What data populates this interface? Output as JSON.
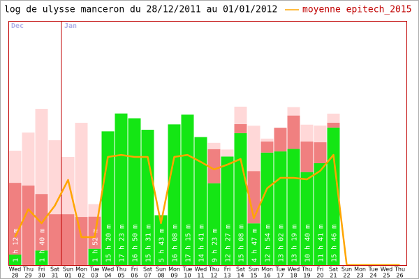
{
  "chart_data": {
    "type": "bar",
    "stacked": true,
    "title": "log de ulysse manceron du 28/12/2011 au 01/01/2012",
    "categories": [
      "28",
      "29",
      "30",
      "31",
      "01",
      "02",
      "03",
      "04",
      "05",
      "06",
      "07",
      "08",
      "09",
      "10",
      "11",
      "12",
      "13",
      "14",
      "15",
      "16",
      "17",
      "18",
      "19",
      "20",
      "21",
      "22",
      "23",
      "24",
      "25",
      "26"
    ],
    "weekdays": [
      "Wed",
      "Thu",
      "Fri",
      "Sat",
      "Sun",
      "Mon",
      "Tue",
      "Wed",
      "Thu",
      "Fri",
      "Sat",
      "Sun",
      "Mon",
      "Tue",
      "Wed",
      "Thu",
      "Fri",
      "Sat",
      "Sun",
      "Mon",
      "Tue",
      "Wed",
      "Thu",
      "Fri",
      "Sat",
      "Sun",
      "Mon",
      "Tue",
      "Wed",
      "Thu"
    ],
    "months": [
      "Dec",
      null,
      null,
      null,
      "Jan",
      null,
      null,
      null,
      null,
      null,
      null,
      null,
      null,
      null,
      null,
      null,
      null,
      null,
      null,
      null,
      null,
      null,
      null,
      null,
      null,
      null,
      null,
      null,
      null,
      null
    ],
    "ylim": [
      0,
      1680
    ],
    "series": [
      {
        "color": "#14e614",
        "values": [
          72,
          0,
          100,
          0,
          0,
          0,
          112,
          920,
          1043,
          1010,
          931,
          343,
          968,
          1035,
          881,
          563,
          747,
          908,
          287,
          774,
          782,
          799,
          640,
          701,
          946,
          0,
          0,
          0,
          0,
          0
        ],
        "value_labels": [
          "1 h 12 m",
          null,
          "1 h 40 m",
          null,
          null,
          null,
          "1 h 52 m",
          "15 h 20 m",
          "17 h 23 m",
          "16 h 50 m",
          "15 h 31 m",
          "5 h 43 m",
          "16 h 08 m",
          "17 h 15 m",
          "14 h 41 m",
          "9 h 23 m",
          "12 h 27 m",
          "15 h 08 m",
          "4 h 47 m",
          "12 h 54 m",
          "13 h 02 m",
          "13 h 19 m",
          "10 h 40 m",
          "11 h 41 m",
          "15 h 46 m",
          null,
          null,
          null,
          null,
          null
        ]
      },
      {
        "color": "#f08080",
        "values": [
          494,
          547,
          389,
          350,
          350,
          331,
          221,
          0,
          0,
          0,
          0,
          0,
          0,
          0,
          0,
          235,
          0,
          62,
          360,
          77,
          163,
          230,
          211,
          144,
          34,
          0,
          0,
          0,
          0,
          0
        ]
      },
      {
        "color": "#ffd8d8",
        "values": [
          221,
          365,
          586,
          509,
          394,
          648,
          86,
          0,
          0,
          0,
          0,
          0,
          0,
          0,
          0,
          43,
          48,
          120,
          312,
          19,
          0,
          58,
          115,
          115,
          62,
          0,
          0,
          0,
          0,
          0
        ]
      },
      {
        "name": "moyenne epitech_2015",
        "type": "line",
        "color": "#ffa500",
        "values": [
          192,
          384,
          288,
          408,
          586,
          192,
          192,
          744,
          758,
          744,
          744,
          288,
          744,
          758,
          710,
          658,
          691,
          730,
          322,
          528,
          600,
          600,
          590,
          648,
          758,
          0,
          0,
          0,
          0,
          0
        ]
      }
    ]
  }
}
